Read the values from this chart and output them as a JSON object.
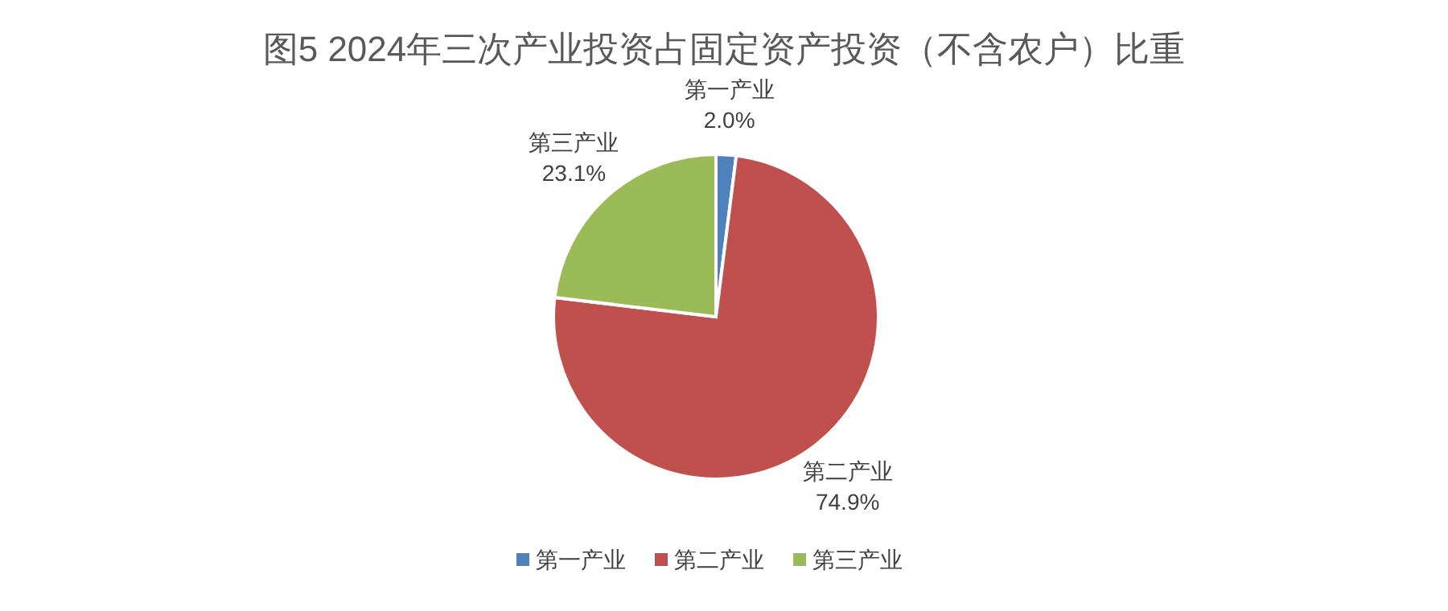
{
  "chart_data": {
    "type": "pie",
    "title": "图5 2024年三次产业投资占固定资产投资（不含农户）比重",
    "categories": [
      "第一产业",
      "第二产业",
      "第三产业"
    ],
    "values": [
      2.0,
      74.9,
      23.1
    ],
    "value_labels": [
      "2.0%",
      "74.9%",
      "23.1%"
    ],
    "colors": [
      "#4f81bd",
      "#c0504d",
      "#9bbb59"
    ],
    "legend": "bottom"
  }
}
